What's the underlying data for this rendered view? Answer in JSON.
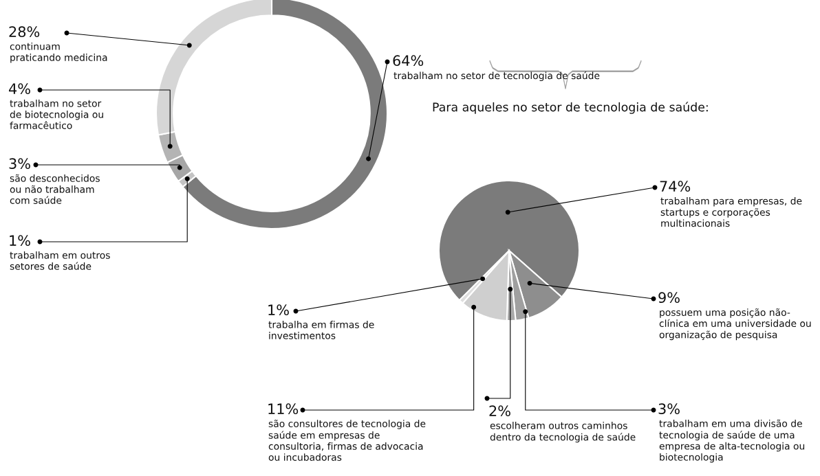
{
  "chart_data": [
    {
      "type": "donut",
      "categories": [
        "trabalham no setor de tecnologia de saúde",
        "trabalham em outros\nsetores de saúde",
        "são desconhecidos\nou não trabalham\ncom saúde",
        "trabalham no setor\nde biotecnologia ou\nfarmacêutico",
        "continuam\npraticando medicina"
      ],
      "values": [
        64,
        1,
        3,
        4,
        28
      ],
      "colors": [
        "#7b7b7b",
        "#c4c4c4",
        "#a6a6a6",
        "#b4b4b4",
        "#d6d6d6"
      ],
      "value_labels": [
        "64%",
        "1%",
        "3%",
        "4%",
        "28%"
      ]
    },
    {
      "type": "pie",
      "title": "Para aqueles no setor de tecnologia de saúde:",
      "categories": [
        "trabalham para empresas, de\nstartups e corporações\nmultinacionais",
        "possuem uma posição não-\nclínica em uma universidade ou\norganização de pesquisa",
        "trabalham em uma divisão de\ntecnologia de saúde de uma\nempresa de alta-tecnologia ou\nbiotecnologia",
        "escolheram outros caminhos\ndentro da tecnologia de saúde",
        "são consultores de tecnologia de\nsaúde em empresas de\nconsultoria, firmas de advocacia\nou incubadoras",
        "trabalha em firmas de\ninvestimentos"
      ],
      "values": [
        74,
        9,
        3,
        2,
        11,
        1
      ],
      "colors": [
        "#7b7b7b",
        "#8e8e8e",
        "#a0a0a0",
        "#a9a9a9",
        "#cfcfcf",
        "#dedede"
      ],
      "value_labels": [
        "74%",
        "9%",
        "3%",
        "2%",
        "11%",
        "1%"
      ]
    }
  ]
}
